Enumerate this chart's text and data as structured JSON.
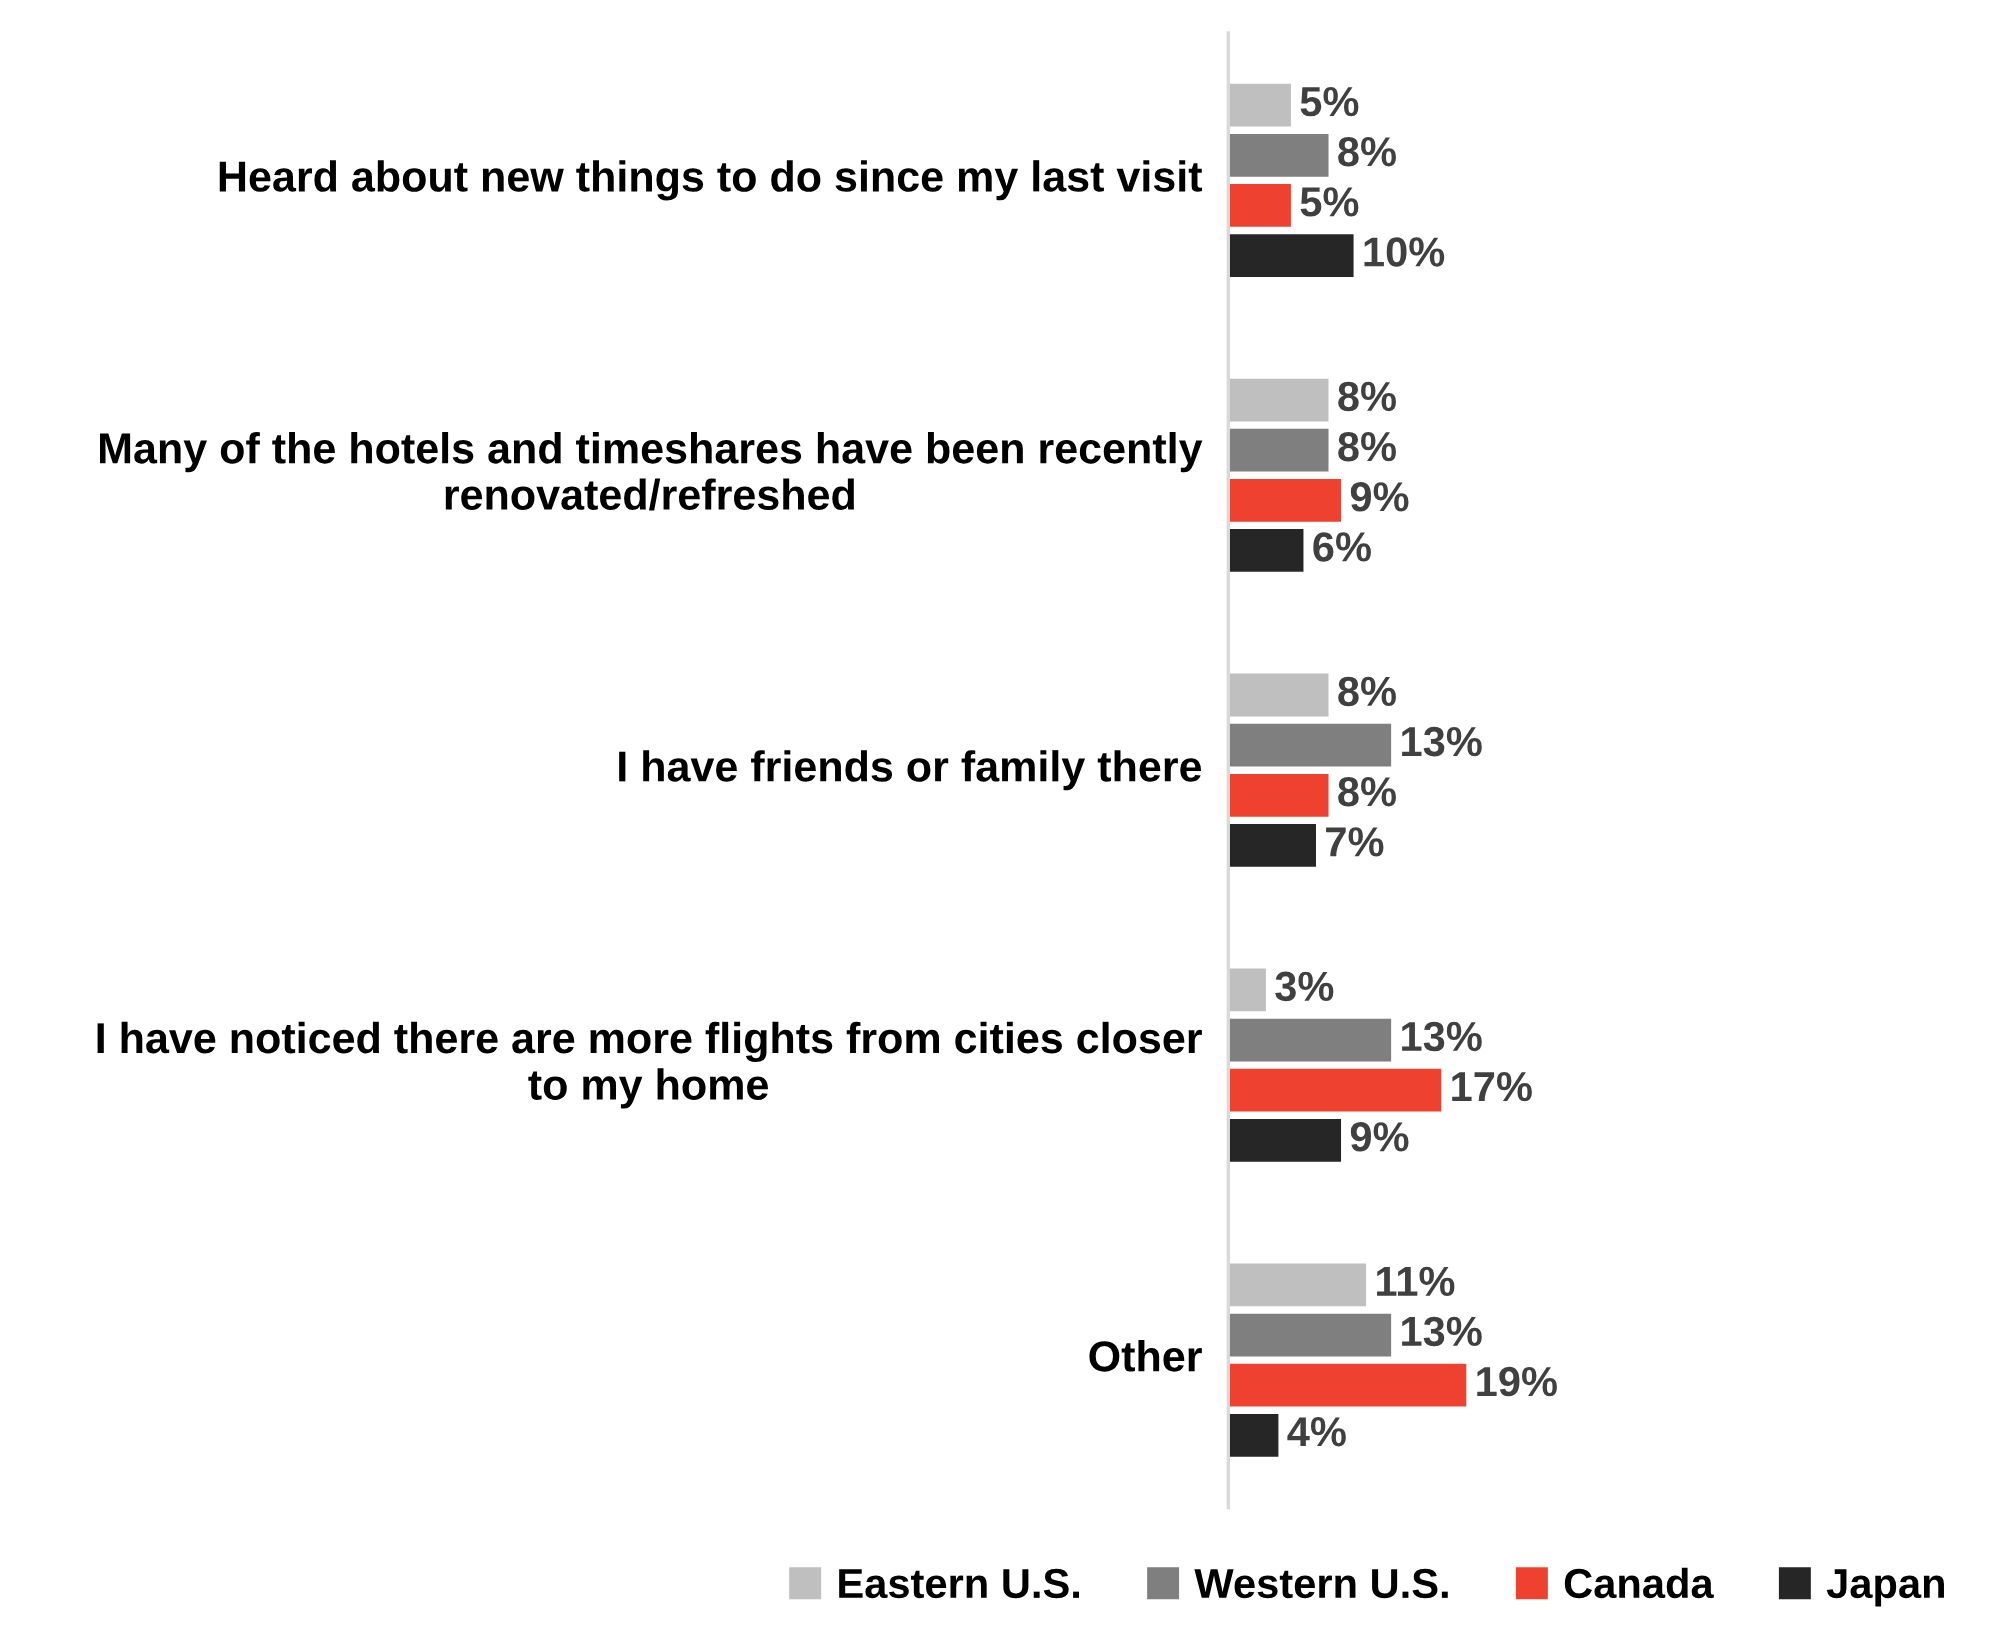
{
  "chart_data": {
    "type": "bar",
    "orientation": "horizontal",
    "categories": [
      "Heard about new things to do since my last visit",
      "Many of the hotels and timeshares have been recently renovated/refreshed",
      "I have friends or family there",
      "I have noticed there are more flights from cities closer to my home",
      "Other"
    ],
    "series": [
      {
        "name": "Eastern U.S.",
        "color": "#bfbfbf",
        "values": [
          5,
          8,
          8,
          3,
          11
        ],
        "value_labels": [
          "5%",
          "8%",
          "8%",
          "3%",
          "11%"
        ]
      },
      {
        "name": "Western U.S.",
        "color": "#7f7f7f",
        "values": [
          8,
          8,
          13,
          13,
          13
        ],
        "value_labels": [
          "8%",
          "8%",
          "13%",
          "13%",
          "13%"
        ]
      },
      {
        "name": "Canada",
        "color": "#ee4130",
        "values": [
          5,
          9,
          8,
          17,
          19
        ],
        "value_labels": [
          "5%",
          "9%",
          "8%",
          "17%",
          "19%"
        ]
      },
      {
        "name": "Japan",
        "color": "#262626",
        "values": [
          10,
          6,
          7,
          9,
          4
        ],
        "value_labels": [
          "10%",
          "6%",
          "7%",
          "9%",
          "4%"
        ]
      }
    ],
    "legend": "bottom"
  }
}
